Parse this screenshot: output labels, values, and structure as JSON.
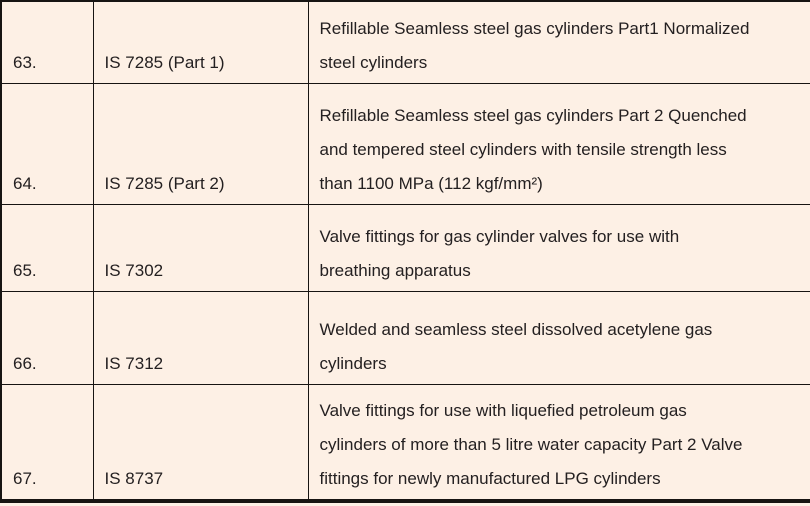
{
  "page": {
    "background_color": "#fdf0e5",
    "border_color": "#171412",
    "text_color": "#242021"
  },
  "table": {
    "rows": [
      {
        "serial": "63.",
        "standard": "IS 7285 (Part 1)",
        "description": "Refillable Seamless steel gas cylinders Part1 Normalized\nsteel cylinders"
      },
      {
        "serial": "64.",
        "standard": "IS 7285 (Part 2)",
        "description": "Refillable Seamless steel gas cylinders Part 2 Quenched\nand tempered steel cylinders with tensile strength less\nthan 1100 MPa (112 kgf/mm²)"
      },
      {
        "serial": "65.",
        "standard": "IS 7302",
        "description": "Valve fittings for gas cylinder valves for use with\nbreathing apparatus"
      },
      {
        "serial": "66.",
        "standard": "IS 7312",
        "description": "Welded and seamless steel dissolved acetylene gas\ncylinders"
      },
      {
        "serial": "67.",
        "standard": "IS 8737",
        "description": "Valve fittings for use with liquefied petroleum gas\ncylinders of more than 5 litre water capacity Part 2 Valve\nfittings for newly manufactured LPG cylinders"
      }
    ]
  }
}
